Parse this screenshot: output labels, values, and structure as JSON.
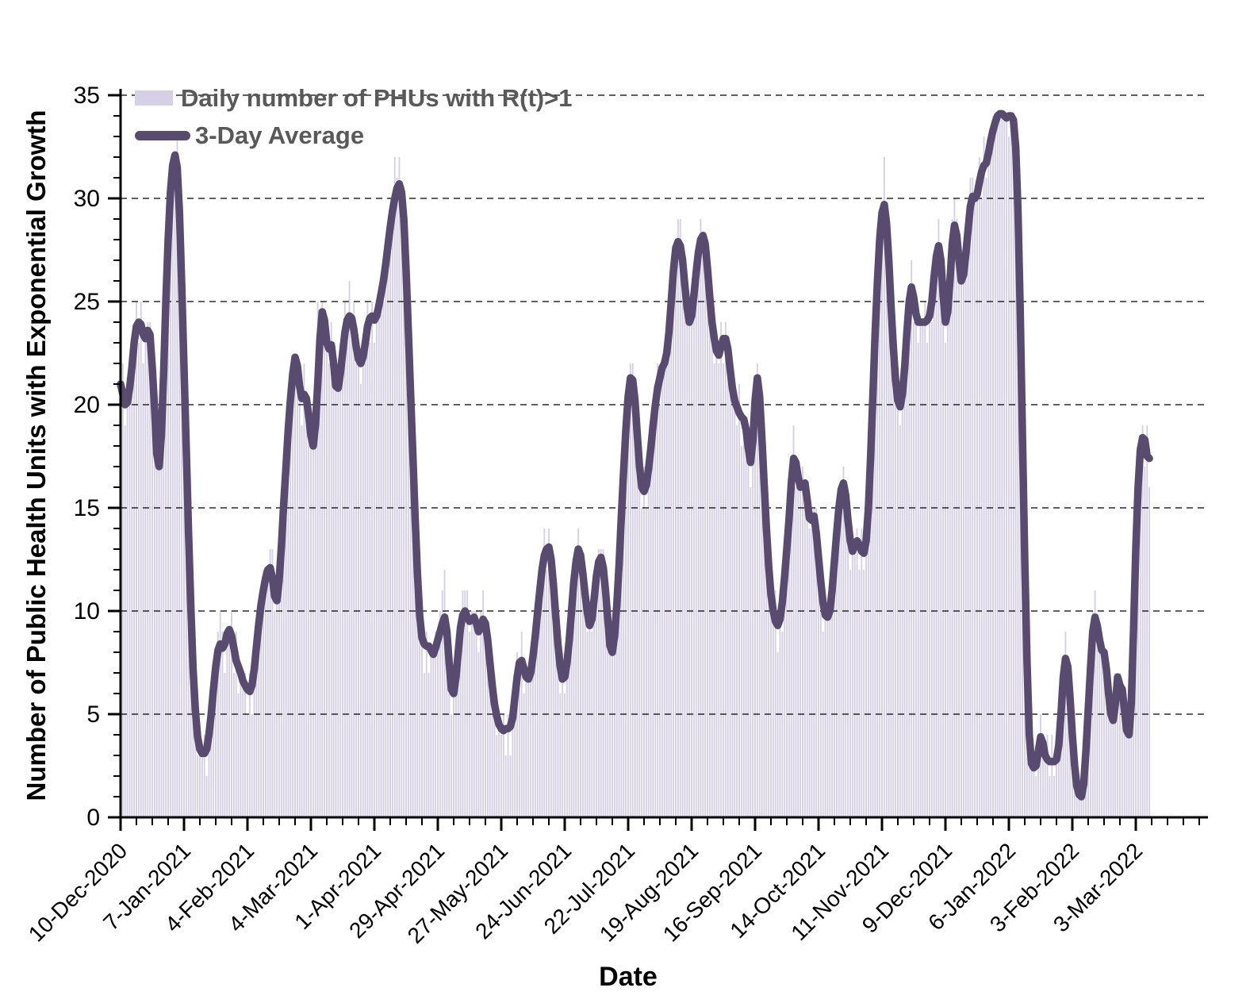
{
  "axes": {
    "x_title": "Date",
    "y_title": "Number of Public Health Units with Exponential Growth"
  },
  "legend": {
    "bars_label": "Daily number of PHUs with R(t)>1",
    "line_label": "3-Day Average"
  },
  "style": {
    "bar_color": "#d5d0e3",
    "line_color": "#594a70",
    "grid_color": "#000000",
    "axis_color": "#000000",
    "tick_label_color": "#000000",
    "legend_text_color": "#595959"
  },
  "chart_data": {
    "type": "bar",
    "title": "",
    "xlabel": "Date",
    "ylabel": "Number of Public Health Units with Exponential Growth",
    "ylim": [
      0,
      35
    ],
    "y_tick_step": 5,
    "y_minor_tick_step": 1,
    "grid": "dashed horizontal at every 5 units",
    "legend_position": "top-left inside plot",
    "x_start_date": "10-Dec-2020",
    "x_tick_interval_days": 28,
    "x_minor_tick_interval_days": 7,
    "x_axis_extra_tick_days_beyond_data": 476,
    "x_tick_labels": [
      "10-Dec-2020",
      "7-Jan-2021",
      "4-Feb-2021",
      "4-Mar-2021",
      "1-Apr-2021",
      "29-Apr-2021",
      "27-May-2021",
      "24-Jun-2021",
      "22-Jul-2021",
      "19-Aug-2021",
      "16-Sep-2021",
      "14-Oct-2021",
      "11-Nov-2021",
      "9-Dec-2021",
      "6-Jan-2022",
      "3-Feb-2022",
      "3-Mar-2022"
    ],
    "num_days": 455,
    "series": [
      {
        "name": "3-Day Average",
        "type": "line",
        "color": "#594a70",
        "values": [
          21.0,
          20.5,
          20.0,
          20.1,
          20.8,
          21.8,
          23.0,
          23.8,
          24.0,
          23.9,
          23.4,
          23.2,
          23.6,
          23.4,
          21.8,
          19.8,
          17.6,
          17.0,
          18.5,
          21.5,
          25.0,
          28.0,
          30.3,
          31.6,
          32.1,
          31.5,
          29.3,
          25.8,
          21.8,
          17.8,
          13.8,
          10.2,
          7.2,
          5.2,
          3.9,
          3.3,
          3.1,
          3.1,
          3.3,
          4.0,
          5.0,
          6.2,
          7.3,
          8.1,
          8.4,
          8.2,
          8.4,
          8.9,
          9.1,
          8.8,
          8.2,
          7.6,
          7.3,
          7.0,
          6.6,
          6.4,
          6.2,
          6.1,
          6.4,
          7.2,
          8.3,
          9.4,
          10.3,
          11.0,
          11.6,
          12.0,
          12.1,
          11.6,
          10.7,
          10.5,
          11.5,
          13.2,
          15.2,
          17.0,
          18.8,
          20.3,
          21.5,
          22.3,
          21.9,
          20.9,
          20.3,
          20.5,
          20.3,
          19.5,
          18.5,
          18.0,
          19.0,
          21.0,
          23.2,
          24.5,
          24.1,
          23.0,
          22.7,
          22.9,
          22.0,
          20.9,
          20.8,
          21.5,
          22.5,
          23.5,
          24.1,
          24.3,
          24.2,
          23.6,
          22.8,
          22.2,
          22.0,
          22.3,
          23.0,
          23.8,
          24.2,
          24.3,
          24.1,
          24.3,
          24.8,
          25.4,
          26.0,
          26.8,
          27.7,
          28.6,
          29.4,
          30.0,
          30.5,
          30.7,
          30.3,
          29.0,
          26.5,
          23.5,
          20.5,
          17.5,
          14.5,
          11.8,
          9.8,
          8.7,
          8.4,
          8.3,
          8.3,
          8.1,
          7.9,
          8.2,
          8.6,
          9.0,
          9.4,
          9.7,
          9.0,
          7.5,
          6.2,
          6.0,
          6.8,
          8.0,
          9.2,
          9.8,
          10.0,
          9.7,
          9.5,
          9.6,
          9.7,
          9.4,
          9.0,
          9.2,
          9.6,
          9.4,
          8.6,
          7.5,
          6.4,
          5.5,
          4.9,
          4.5,
          4.3,
          4.2,
          4.3,
          4.3,
          4.4,
          4.8,
          5.8,
          6.8,
          7.5,
          7.6,
          7.2,
          6.8,
          6.7,
          7.0,
          7.8,
          8.8,
          9.9,
          11.0,
          12.0,
          12.7,
          13.0,
          13.1,
          12.5,
          11.3,
          9.8,
          8.4,
          7.3,
          6.7,
          6.8,
          7.5,
          8.6,
          10.0,
          11.4,
          12.4,
          13.0,
          12.7,
          11.8,
          10.8,
          9.9,
          9.3,
          9.6,
          10.6,
          11.7,
          12.4,
          12.6,
          12.1,
          11.0,
          9.6,
          8.3,
          8.0,
          8.8,
          10.3,
          12.3,
          14.6,
          16.8,
          18.8,
          20.4,
          21.3,
          21.2,
          20.2,
          18.6,
          17.0,
          16.0,
          15.8,
          16.1,
          16.9,
          17.9,
          19.0,
          20.0,
          20.8,
          21.3,
          21.8,
          22.0,
          22.5,
          23.5,
          25.0,
          26.5,
          27.6,
          27.9,
          27.7,
          27.0,
          25.8,
          24.7,
          24.0,
          24.3,
          25.3,
          26.4,
          27.4,
          28.0,
          28.2,
          27.8,
          26.6,
          25.2,
          24.0,
          23.2,
          22.6,
          22.4,
          22.8,
          23.2,
          23.2,
          22.7,
          21.7,
          20.8,
          20.2,
          19.9,
          19.6,
          19.4,
          19.3,
          18.8,
          17.9,
          17.2,
          18.2,
          20.2,
          21.3,
          20.4,
          18.4,
          16.2,
          14.0,
          12.2,
          10.8,
          10.0,
          9.5,
          9.3,
          9.6,
          10.4,
          11.6,
          13.0,
          14.5,
          16.2,
          17.4,
          17.2,
          16.5,
          16.0,
          16.1,
          16.2,
          15.4,
          14.5,
          14.4,
          14.6,
          13.8,
          12.6,
          11.4,
          10.4,
          9.8,
          9.7,
          10.0,
          11.0,
          12.4,
          13.8,
          15.0,
          15.9,
          16.2,
          15.6,
          14.4,
          13.4,
          12.9,
          13.2,
          13.4,
          13.2,
          12.9,
          12.8,
          13.4,
          15.0,
          17.5,
          20.5,
          23.5,
          26.0,
          28.0,
          29.3,
          29.7,
          28.8,
          27.0,
          24.8,
          22.8,
          21.2,
          20.2,
          19.9,
          20.5,
          21.8,
          23.5,
          25.0,
          25.7,
          25.2,
          24.4,
          24.0,
          24.0,
          24.0,
          24.0,
          24.1,
          24.3,
          25.0,
          26.2,
          27.2,
          27.7,
          27.0,
          25.3,
          24.0,
          24.5,
          26.0,
          27.8,
          28.7,
          28.2,
          27.0,
          26.0,
          26.3,
          27.3,
          28.5,
          29.6,
          30.1,
          30.0,
          30.2,
          30.8,
          31.3,
          31.6,
          31.7,
          32.2,
          32.8,
          33.3,
          33.7,
          34.0,
          34.1,
          34.1,
          34.0,
          33.9,
          34.0,
          34.0,
          33.8,
          32.5,
          29.5,
          24.5,
          18.5,
          12.5,
          7.5,
          4.0,
          2.6,
          2.4,
          2.5,
          3.2,
          3.9,
          3.6,
          3.0,
          2.8,
          2.7,
          2.7,
          2.7,
          2.8,
          3.5,
          5.0,
          6.8,
          7.7,
          7.3,
          5.8,
          4.0,
          2.5,
          1.5,
          1.1,
          1.0,
          1.6,
          3.2,
          5.2,
          7.2,
          9.0,
          9.7,
          9.3,
          8.6,
          8.1,
          8.0,
          7.2,
          6.0,
          5.0,
          4.7,
          5.5,
          6.8,
          6.4,
          6.2,
          5.2,
          4.2,
          4.0,
          5.5,
          9.0,
          13.0,
          16.0,
          17.8,
          18.4,
          18.3,
          17.5,
          17.4
        ]
      },
      {
        "name": "Daily number of PHUs with R(t)>1",
        "type": "bar",
        "color": "#d5d0e3",
        "derivation": "daily value = round(3-day average) + jitter_pattern[day mod 6], clamped to [0,34], with spike overrides below (values read from visible tall/short bars)",
        "jitter_pattern": [
          0,
          1,
          -1,
          1,
          -1,
          0
        ],
        "value_clamp": [
          0,
          34
        ],
        "spike_overrides": {
          "0": 22,
          "23": 31,
          "24": 32,
          "44": 10,
          "66": 13,
          "87": 25,
          "101": 26,
          "111": 25,
          "121": 32,
          "122": 31,
          "142": 11,
          "143": 12,
          "152": 11,
          "160": 11,
          "189": 14,
          "202": 14,
          "212": 13,
          "226": 22,
          "246": 29,
          "256": 29,
          "281": 22,
          "297": 19,
          "306": 15,
          "319": 17,
          "337": 32,
          "349": 27,
          "361": 29,
          "368": 30,
          "376": 31,
          "384": 33,
          "388": 34,
          "391": 34,
          "406": 5,
          "417": 9,
          "424": 1,
          "430": 11,
          "440": 7,
          "451": 19
        }
      }
    ]
  }
}
